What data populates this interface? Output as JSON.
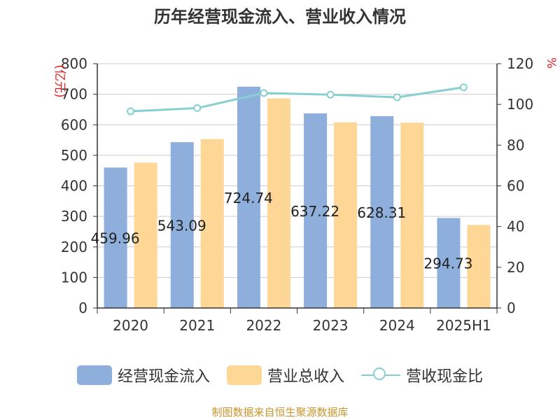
{
  "title": "历年经营现金流入、营业收入情况",
  "footer": "制图数据来自恒生聚源数据库",
  "chart_data": {
    "type": "bar",
    "categories": [
      "2020",
      "2021",
      "2022",
      "2023",
      "2024",
      "2025H1"
    ],
    "series": [
      {
        "name": "经营现金流入",
        "type": "bar",
        "axis": "left",
        "color": "#8eafdc",
        "values": [
          459.96,
          543.09,
          724.74,
          637.22,
          628.31,
          294.73
        ],
        "labels": [
          "459.96",
          "543.09",
          "724.74",
          "637.22",
          "628.31",
          "294.73"
        ]
      },
      {
        "name": "营业总收入",
        "type": "bar",
        "axis": "left",
        "color": "#fed797",
        "values": [
          476,
          553,
          686,
          608,
          607,
          272
        ]
      },
      {
        "name": "营收现金比",
        "type": "line",
        "axis": "right",
        "color": "#88cfd2",
        "values": [
          96.6,
          98.2,
          105.6,
          104.8,
          103.5,
          108.4
        ]
      }
    ],
    "ylabel_left": "亿元",
    "ylabel_right": "%",
    "ylim_left": [
      0,
      800
    ],
    "ylim_right": [
      0,
      120
    ],
    "yticks_left": [
      0,
      100,
      200,
      300,
      400,
      500,
      600,
      700,
      800
    ],
    "yticks_right": [
      0,
      20,
      40,
      60,
      80,
      100,
      120
    ],
    "grid": true,
    "legend_position": "bottom"
  }
}
